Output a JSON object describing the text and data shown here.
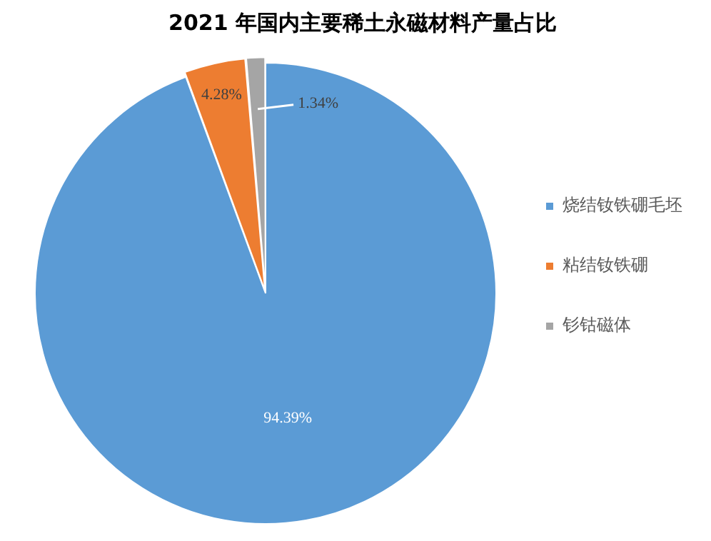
{
  "chart_data": {
    "type": "pie",
    "title": "2021 年国内主要稀土永磁材料产量占比",
    "categories": [
      "烧结钕铁硼毛坯",
      "粘结钕铁硼",
      "钐钴磁体"
    ],
    "values": [
      94.39,
      4.28,
      1.34
    ],
    "colors": [
      "#5b9bd5",
      "#ed7d31",
      "#a5a5a5"
    ],
    "value_labels": [
      "94.39%",
      "4.28%",
      "1.34%"
    ],
    "legend": "right"
  }
}
